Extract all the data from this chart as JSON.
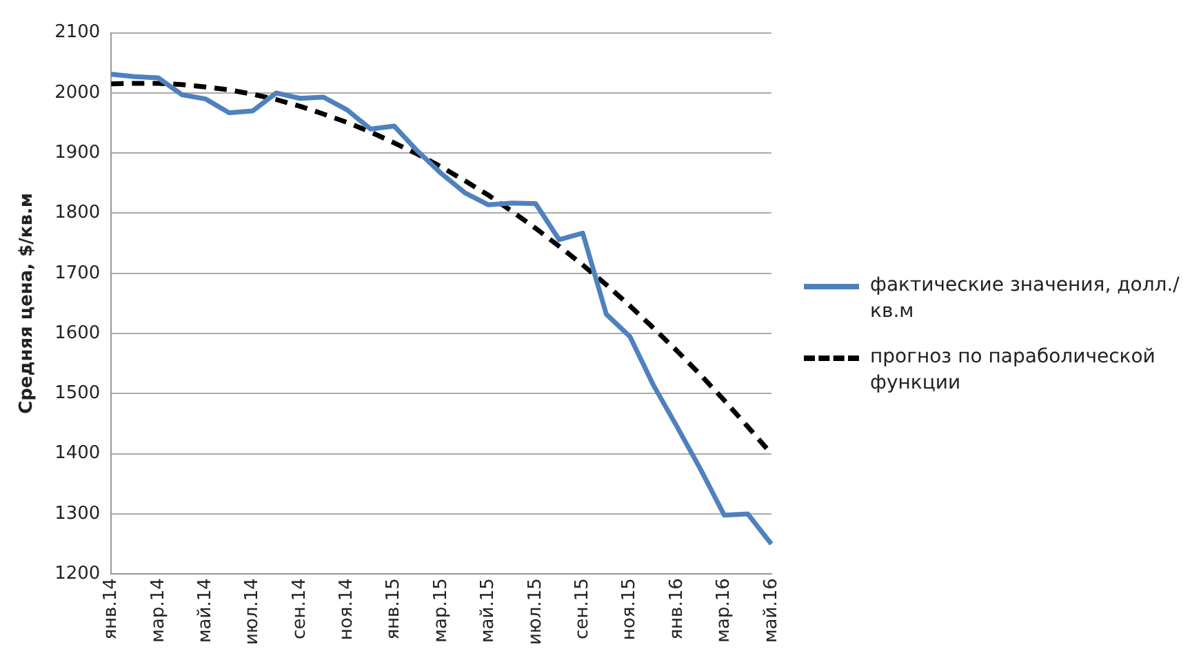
{
  "chart_data": {
    "type": "line",
    "ylabel": "Средняя цена, $/кв.м",
    "categories": [
      "янв.14",
      null,
      "мар.14",
      null,
      "май.14",
      null,
      "июл.14",
      null,
      "сен.14",
      null,
      "ноя.14",
      null,
      "янв.15",
      null,
      "мар.15",
      null,
      "май.15",
      null,
      "июл.15",
      null,
      "сен.15",
      null,
      "ноя.15",
      null,
      "янв.16",
      null,
      "мар.16",
      null,
      "май.16"
    ],
    "series": [
      {
        "name": "фактические значения, долл./кв.м",
        "color": "#4f81bd",
        "line_style": "solid",
        "values": [
          2031,
          2027,
          2025,
          1997,
          1990,
          1967,
          1970,
          2000,
          1991,
          1993,
          1972,
          1940,
          1945,
          1903,
          1866,
          1834,
          1814,
          1817,
          1816,
          1756,
          1767,
          1632,
          1595,
          1514,
          1445,
          1374,
          1298,
          1300,
          1250
        ]
      },
      {
        "name": "прогноз по параболической функции",
        "color": "#000000",
        "line_style": "dashed",
        "values": [
          2015,
          2016,
          2016,
          2014,
          2010,
          2005,
          1998,
          1989,
          1978,
          1965,
          1951,
          1935,
          1917,
          1898,
          1877,
          1854,
          1830,
          1803,
          1775,
          1745,
          1714,
          1681,
          1646,
          1609,
          1571,
          1531,
          1489,
          1445,
          1400
        ]
      }
    ],
    "ylim": [
      1200,
      2100
    ],
    "yticks": [
      1200,
      1300,
      1400,
      1500,
      1600,
      1700,
      1800,
      1900,
      2000,
      2100
    ],
    "grid": "y",
    "legend": "right",
    "marker": "none"
  }
}
